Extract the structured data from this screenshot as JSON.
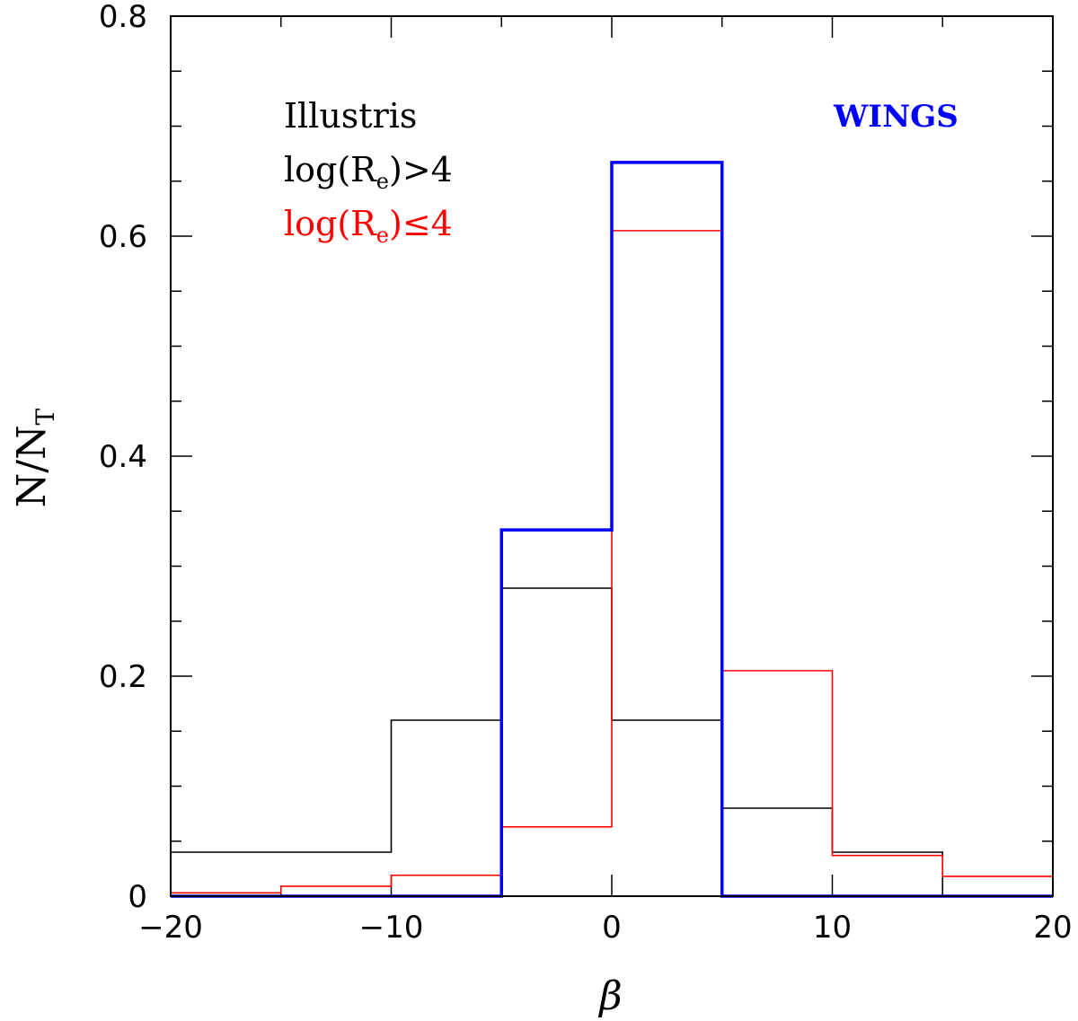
{
  "chart_data": {
    "type": "histogram",
    "xlabel": "β",
    "ylabel": {
      "main": "N/N",
      "sub": "T"
    },
    "xlim": [
      -20,
      20
    ],
    "ylim": [
      0,
      0.8
    ],
    "xticks": [
      -20,
      -10,
      0,
      10,
      20
    ],
    "xtick_labels": [
      "−20",
      "−10",
      "0",
      "10",
      "20"
    ],
    "yticks": [
      0,
      0.2,
      0.4,
      0.6,
      0.8
    ],
    "ytick_labels": [
      "0",
      "0.2",
      "0.4",
      "0.6",
      "0.8"
    ],
    "bin_edges": [
      -20,
      -15,
      -10,
      -5,
      0,
      5,
      10,
      15,
      20
    ],
    "series": [
      {
        "key": "high",
        "color": "#000000",
        "values": [
          0.04,
          0.04,
          0.16,
          0.28,
          0.16,
          0.08,
          0.04,
          0.0
        ]
      },
      {
        "key": "low",
        "color": "#ff0000",
        "values": [
          0.003,
          0.009,
          0.019,
          0.063,
          0.605,
          0.205,
          0.037,
          0.018
        ]
      },
      {
        "key": "wings",
        "color": "#0000ff",
        "values": [
          0.0,
          0.0,
          0.0,
          0.333,
          0.667,
          0.0,
          0.0,
          0.0
        ]
      }
    ],
    "legend": {
      "title": "Illustris",
      "high": {
        "pre": "log(R",
        "sub": "e",
        "post": ")>4",
        "color": "#000000"
      },
      "low": {
        "pre": "log(R",
        "sub": "e",
        "post": ")≤4",
        "color": "#ff0000"
      },
      "wings": {
        "text": "WINGS",
        "color": "#0000ff"
      }
    }
  }
}
